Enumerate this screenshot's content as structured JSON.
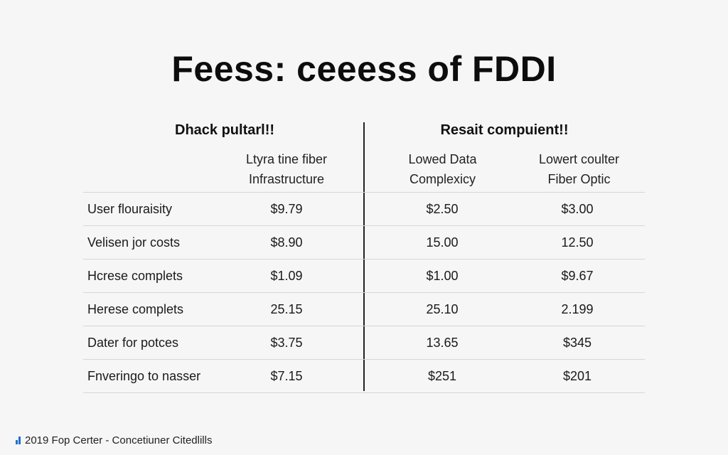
{
  "chart_data": {
    "type": "table",
    "title": "Feess: ceeess of FDDI",
    "column_groups": [
      {
        "label": "Dhack pultarl!!"
      },
      {
        "label": "Resait compuient!!"
      }
    ],
    "columns": [
      [
        "Ltyra tine fiber",
        "Infrastructure"
      ],
      [
        "Lowed Data",
        "Complexicy"
      ],
      [
        "Lowert coulter",
        "Fiber Optic"
      ]
    ],
    "rows": [
      {
        "label": "User flouraisity",
        "values": [
          "$9.79",
          "$2.50",
          "$3.00"
        ]
      },
      {
        "label": "Velisen jor costs",
        "values": [
          "$8.90",
          "15.00",
          "12.50"
        ]
      },
      {
        "label": "Hcrese complets",
        "values": [
          "$1.09",
          "$1.00",
          "$9.67"
        ]
      },
      {
        "label": "Herese complets",
        "values": [
          "25.15",
          "25.10",
          "2.199"
        ]
      },
      {
        "label": "Dater for potces",
        "values": [
          "$3.75",
          "13.65",
          "$345"
        ]
      },
      {
        "label": "Fnveringo to nasser",
        "values": [
          "$7.15",
          "$251",
          "$201"
        ]
      }
    ]
  },
  "footer": {
    "icon": "bar-chart-icon",
    "text": "2019 Fop Certer - Concetiuner Citedlills"
  }
}
